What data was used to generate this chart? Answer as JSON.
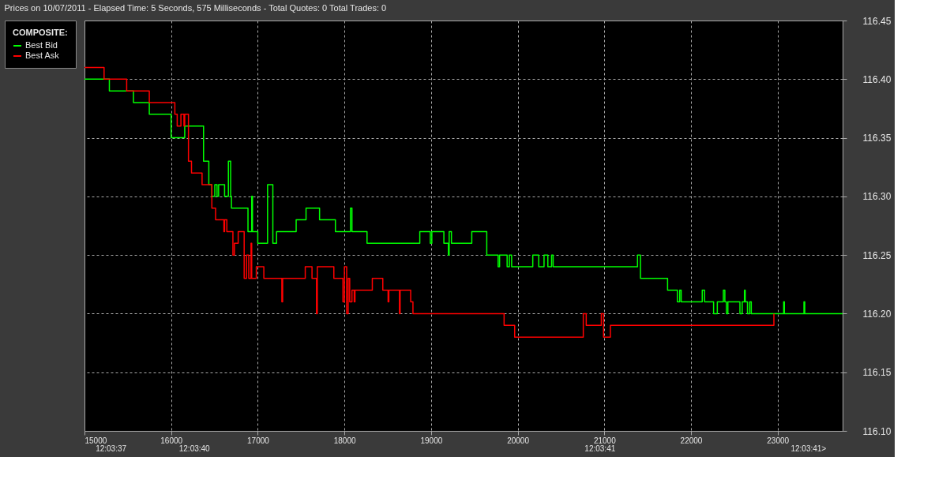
{
  "chart_data": {
    "type": "step",
    "title": "Prices on 10/07/2011  -  Elapsed Time: 5 Seconds, 575 Milliseconds  -  Total Quotes: 0  Total Trades: 0",
    "legend_title": "COMPOSITE:",
    "legend": "left",
    "grid": true,
    "line_style": "solid",
    "xlim": [
      15000,
      23750
    ],
    "xticks": [
      15000,
      16000,
      17000,
      18000,
      19000,
      20000,
      21000,
      22000,
      23000
    ],
    "annotations": [
      "12:03:37",
      "12:03:40",
      "12:03:41",
      "12:03:41>"
    ],
    "ylim": [
      116.1,
      116.45
    ],
    "yticks": [
      {
        "value": 116.1,
        "label": "116.10"
      },
      {
        "value": 116.15,
        "label": "116.15"
      },
      {
        "value": 116.2,
        "label": "116.20"
      },
      {
        "value": 116.25,
        "label": "116.25"
      },
      {
        "value": 116.3,
        "label": "116.30"
      },
      {
        "value": 116.35,
        "label": "116.35"
      },
      {
        "value": 116.4,
        "label": "116.40"
      },
      {
        "value": 116.45,
        "label": "116.45"
      }
    ],
    "series": [
      {
        "name": "Best Bid",
        "color": "#00ff00",
        "x": [
          15000,
          15287,
          15565,
          15748,
          16000,
          16157,
          16374,
          16435,
          16470,
          16504,
          16530,
          16548,
          16617,
          16661,
          16687,
          16696,
          16887,
          16930,
          16939,
          17000,
          17113,
          17174,
          17217,
          17443,
          17557,
          17713,
          17896,
          18070,
          18087,
          18261,
          18870,
          18991,
          19009,
          19148,
          19200,
          19209,
          19235,
          19470,
          19643,
          19774,
          19791,
          19878,
          19904,
          19930,
          20174,
          20243,
          20304,
          20348,
          20391,
          20409,
          21383,
          21417,
          21730,
          21843,
          21870,
          21887,
          22130,
          22157,
          22261,
          22304,
          22374,
          22391,
          22409,
          22426,
          22565,
          22591,
          22617,
          22626,
          22652,
          22678,
          22696,
          23070,
          23078,
          23304,
          23313,
          23750
        ],
        "values": [
          116.4,
          116.39,
          116.38,
          116.37,
          116.35,
          116.36,
          116.33,
          116.31,
          116.3,
          116.31,
          116.3,
          116.31,
          116.3,
          116.33,
          116.3,
          116.29,
          116.27,
          116.3,
          116.27,
          116.26,
          116.31,
          116.26,
          116.27,
          116.28,
          116.29,
          116.28,
          116.27,
          116.29,
          116.27,
          116.26,
          116.27,
          116.26,
          116.27,
          116.26,
          116.25,
          116.27,
          116.26,
          116.27,
          116.25,
          116.24,
          116.25,
          116.24,
          116.25,
          116.24,
          116.25,
          116.24,
          116.25,
          116.24,
          116.25,
          116.24,
          116.25,
          116.23,
          116.22,
          116.21,
          116.22,
          116.21,
          116.22,
          116.21,
          116.2,
          116.21,
          116.22,
          116.21,
          116.2,
          116.21,
          116.2,
          116.21,
          116.22,
          116.21,
          116.2,
          116.21,
          116.2,
          116.21,
          116.2,
          116.21,
          116.2,
          116.2
        ]
      },
      {
        "name": "Best Ask",
        "color": "#ff0000",
        "x": [
          15000,
          15226,
          15487,
          15748,
          16043,
          16070,
          16113,
          16148,
          16157,
          16200,
          16235,
          16357,
          16470,
          16513,
          16609,
          16617,
          16643,
          16713,
          16730,
          16774,
          16843,
          16870,
          16896,
          16922,
          16930,
          16983,
          17070,
          17278,
          17287,
          17548,
          17626,
          17678,
          17687,
          17878,
          17983,
          18000,
          18026,
          18043,
          18061,
          18087,
          18113,
          18122,
          18322,
          18443,
          18504,
          18513,
          18635,
          18643,
          18765,
          18791,
          19843,
          19965,
          20757,
          20791,
          20965,
          20991,
          21070,
          22957
        ],
        "values": [
          116.41,
          116.4,
          116.39,
          116.38,
          116.37,
          116.36,
          116.37,
          116.36,
          116.37,
          116.33,
          116.32,
          116.31,
          116.29,
          116.28,
          116.27,
          116.28,
          116.27,
          116.25,
          116.26,
          116.27,
          116.23,
          116.25,
          116.23,
          116.26,
          116.23,
          116.24,
          116.23,
          116.21,
          116.23,
          116.24,
          116.23,
          116.2,
          116.24,
          116.23,
          116.21,
          116.24,
          116.2,
          116.23,
          116.21,
          116.22,
          116.21,
          116.22,
          116.23,
          116.22,
          116.21,
          116.22,
          116.2,
          116.22,
          116.21,
          116.2,
          116.19,
          116.18,
          116.2,
          116.19,
          116.2,
          116.18,
          116.19,
          116.2
        ]
      }
    ]
  }
}
